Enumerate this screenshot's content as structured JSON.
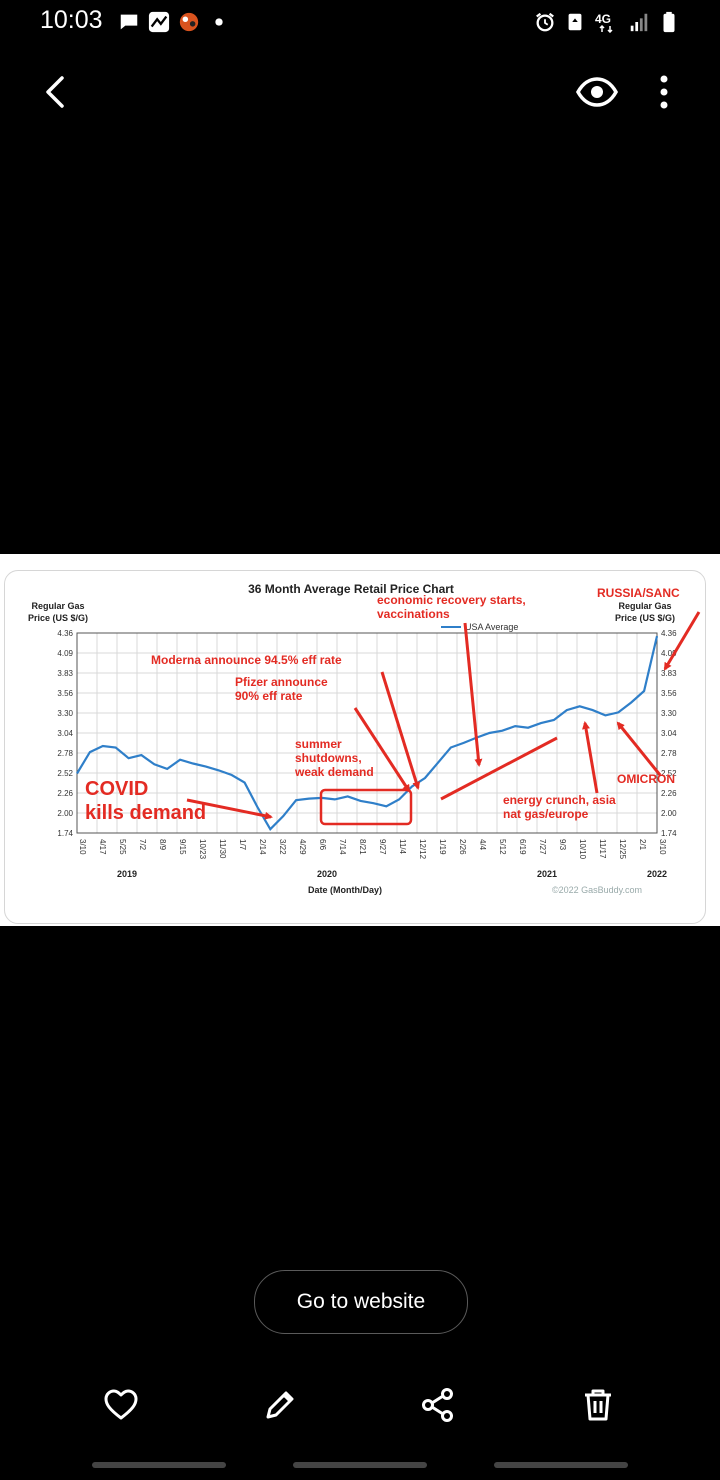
{
  "status_bar": {
    "time": "10:03",
    "left_icons": [
      "chat-bubble-icon",
      "stocks-app-icon",
      "game-app-icon",
      "notification-dot-icon"
    ],
    "right_icons": [
      "alarm-icon",
      "recycle-icon",
      "network-4g-icon",
      "signal-icon",
      "battery-icon"
    ],
    "network_label": "4G"
  },
  "top_bar": {
    "back_icon": "chevron-left-icon",
    "view_icon": "eye-icon",
    "more_icon": "more-vert-icon"
  },
  "image": {
    "title": "36 Month Average Retail Price Chart",
    "y_label_left_1": "Regular Gas",
    "y_label_left_2": "Price (US $/G)",
    "y_label_right_1": "Regular Gas",
    "y_label_right_2": "Price (US $/G)",
    "legend": "USA Average",
    "x_label": "Date (Month/Day)",
    "copyright": "©2022 GasBuddy.com",
    "year_labels": [
      "2019",
      "2020",
      "2021",
      "2022"
    ],
    "annotations": {
      "covid_1": "COVID",
      "covid_2": "kills demand",
      "moderna": "Moderna announce 94.5% eff rate",
      "pfizer_1": "Pfizer announce",
      "pfizer_2": "90% eff rate",
      "summer_1": "summer",
      "summer_2": "shutdowns,",
      "summer_3": "weak demand",
      "recovery_1": "economic recovery starts,",
      "recovery_2": "vaccinations",
      "russia": "RUSSIA/SANC",
      "omicron": "OMICRON",
      "energy_1": "energy crunch, asia",
      "energy_2": "nat gas/europe"
    },
    "chart_data": {
      "type": "line",
      "title": "36 Month Average Retail Price Chart",
      "xlabel": "Date (Month/Day)",
      "ylabel": "Regular Gas Price (US $/G)",
      "ylim": [
        1.74,
        4.36
      ],
      "y_ticks": [
        "4.36",
        "4.09",
        "3.83",
        "3.56",
        "3.30",
        "3.04",
        "2.78",
        "2.52",
        "2.26",
        "2.00",
        "1.74"
      ],
      "x_ticks": [
        "3/10",
        "4/17",
        "5/25",
        "7/2",
        "8/9",
        "9/15",
        "10/23",
        "11/30",
        "1/7",
        "2/14",
        "3/22",
        "4/29",
        "6/6",
        "7/14",
        "8/21",
        "9/27",
        "11/4",
        "12/12",
        "1/19",
        "2/26",
        "4/4",
        "5/12",
        "6/19",
        "7/27",
        "9/3",
        "10/10",
        "11/17",
        "12/25",
        "2/1",
        "3/10"
      ],
      "grid": true,
      "series": [
        {
          "name": "USA Average",
          "color": "#2f7fc9",
          "values": [
            2.52,
            2.8,
            2.88,
            2.86,
            2.72,
            2.76,
            2.64,
            2.58,
            2.7,
            2.65,
            2.61,
            2.56,
            2.5,
            2.4,
            2.08,
            1.79,
            1.96,
            2.17,
            2.19,
            2.2,
            2.18,
            2.22,
            2.16,
            2.13,
            2.09,
            2.18,
            2.35,
            2.46,
            2.66,
            2.86,
            2.92,
            2.99,
            3.05,
            3.08,
            3.14,
            3.12,
            3.18,
            3.22,
            3.35,
            3.4,
            3.35,
            3.28,
            3.32,
            3.45,
            3.6,
            4.32
          ]
        }
      ]
    }
  },
  "go_button": {
    "label": "Go to website"
  },
  "bottom_bar": {
    "icons": [
      "heart-icon",
      "edit-icon",
      "share-icon",
      "delete-icon"
    ]
  },
  "colors": {
    "annotation_red": "#e32b23",
    "line_blue": "#2f7fc9",
    "background": "#000000"
  }
}
